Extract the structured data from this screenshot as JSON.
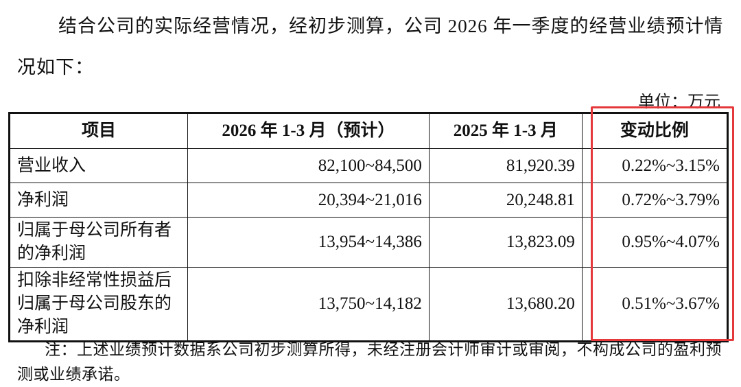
{
  "paragraph": "结合公司的实际经营情况，经初步测算，公司 2026 年一季度的经营业绩预计情况如下：",
  "unit": "单位：万元",
  "table": {
    "header": [
      "项目",
      "2026 年 1-3 月（预计）",
      "2025 年 1-3 月",
      "变动比例"
    ],
    "rows": [
      [
        "营业收入",
        "82,100~84,500",
        "81,920.39",
        "0.22%~3.15%"
      ],
      [
        "净利润",
        "20,394~21,016",
        "20,248.81",
        "0.72%~3.79%"
      ],
      [
        "归属于母公司所有者的净利润",
        "13,954~14,386",
        "13,823.09",
        "0.95%~4.07%"
      ],
      [
        "扣除非经常性损益后归属于母公司股东的净利润",
        "13,750~14,182",
        "13,680.20",
        "0.51%~3.67%"
      ]
    ]
  },
  "note": "注：上述业绩预计数据系公司初步测算所得，未经注册会计师审计或审阅，不构成公司的盈利预测或业绩承诺。"
}
